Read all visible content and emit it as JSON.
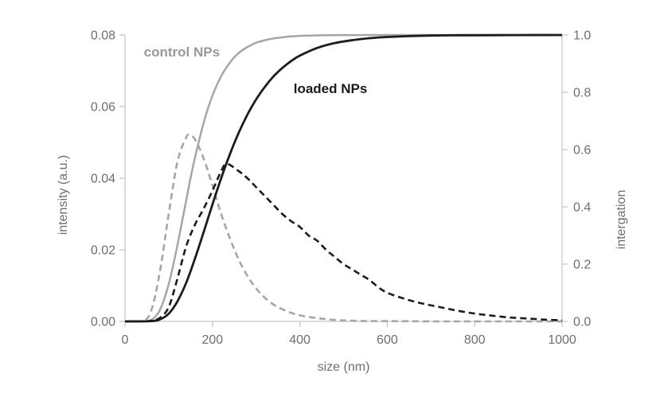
{
  "chart_data": {
    "type": "line",
    "title": "",
    "description": "Dynamic light scattering size distributions (dashed, left axis) and cumulative integration curves (solid, right axis) for control and drug-loaded nanoparticles",
    "x_axis": {
      "title": "size (nm)",
      "range": [
        0,
        1000
      ],
      "ticks": [
        "0",
        "200",
        "400",
        "600",
        "800",
        "1000"
      ]
    },
    "left_axis": {
      "title": "intensity (a.u.)",
      "range": [
        0,
        0.08
      ],
      "ticks": [
        "0.00",
        "0.02",
        "0.04",
        "0.06",
        "0.08"
      ]
    },
    "right_axis": {
      "title": "intergation",
      "range": [
        0,
        1.0
      ],
      "ticks": [
        "0.0",
        "0.2",
        "0.4",
        "0.6",
        "0.8",
        "1.0"
      ]
    },
    "grid": false,
    "legend_position": "none-inline-annotations",
    "colors": {
      "control": "#a6a6a6",
      "loaded": "#1c1c1c",
      "axis_line": "#c8c8c8",
      "tick_text": "#6e6e6e"
    },
    "annotations": [
      {
        "text": "control NPs",
        "color": "#999999",
        "x": 130,
        "value": 0.94,
        "axis": "right"
      },
      {
        "text": "loaded NPs",
        "color": "#1c1c1c",
        "x": 470,
        "value": 0.81,
        "axis": "right"
      }
    ],
    "series": [
      {
        "id": "control_pdf",
        "name": "control NPs size distribution",
        "axis": "left",
        "style": "dashed",
        "color": "#a6a6a6",
        "points": [
          [
            0,
            0
          ],
          [
            40,
            0.0001
          ],
          [
            60,
            0.003
          ],
          [
            80,
            0.014
          ],
          [
            100,
            0.03
          ],
          [
            120,
            0.0446
          ],
          [
            140,
            0.0514
          ],
          [
            148,
            0.052
          ],
          [
            160,
            0.0509
          ],
          [
            180,
            0.0455
          ],
          [
            200,
            0.038
          ],
          [
            220,
            0.03
          ],
          [
            240,
            0.0232
          ],
          [
            260,
            0.0173
          ],
          [
            280,
            0.0127
          ],
          [
            300,
            0.0092
          ],
          [
            320,
            0.0066
          ],
          [
            340,
            0.0047
          ],
          [
            360,
            0.0034
          ],
          [
            380,
            0.0024
          ],
          [
            400,
            0.0017
          ],
          [
            440,
            0.0009
          ],
          [
            480,
            0.0004
          ],
          [
            520,
            0.0002
          ],
          [
            560,
            0.0001
          ],
          [
            600,
            0.0001
          ],
          [
            700,
            0
          ],
          [
            800,
            0
          ],
          [
            900,
            0
          ],
          [
            1000,
            0
          ]
        ]
      },
      {
        "id": "control_cdf",
        "name": "control NPs integration",
        "axis": "right",
        "style": "solid",
        "color": "#a6a6a6",
        "points": [
          [
            0,
            0
          ],
          [
            40,
            0
          ],
          [
            60,
            0.005
          ],
          [
            80,
            0.04
          ],
          [
            100,
            0.13
          ],
          [
            120,
            0.267
          ],
          [
            140,
            0.423
          ],
          [
            150,
            0.5
          ],
          [
            160,
            0.571
          ],
          [
            180,
            0.694
          ],
          [
            200,
            0.788
          ],
          [
            220,
            0.856
          ],
          [
            240,
            0.904
          ],
          [
            260,
            0.937
          ],
          [
            280,
            0.958
          ],
          [
            300,
            0.973
          ],
          [
            320,
            0.982
          ],
          [
            340,
            0.988
          ],
          [
            360,
            0.992
          ],
          [
            380,
            0.995
          ],
          [
            400,
            0.997
          ],
          [
            450,
            0.999
          ],
          [
            500,
            0.9996
          ],
          [
            600,
            1
          ],
          [
            700,
            1
          ],
          [
            800,
            1
          ],
          [
            900,
            1
          ],
          [
            1000,
            1
          ]
        ]
      },
      {
        "id": "loaded_pdf",
        "name": "loaded NPs size distribution",
        "axis": "left",
        "style": "dashed",
        "color": "#1c1c1c",
        "points": [
          [
            0,
            0
          ],
          [
            40,
            0
          ],
          [
            60,
            0.0002
          ],
          [
            80,
            0.001
          ],
          [
            100,
            0.004
          ],
          [
            120,
            0.012
          ],
          [
            140,
            0.021
          ],
          [
            160,
            0.027
          ],
          [
            180,
            0.0315
          ],
          [
            200,
            0.0365
          ],
          [
            220,
            0.042
          ],
          [
            233,
            0.044
          ],
          [
            260,
            0.042
          ],
          [
            280,
            0.04
          ],
          [
            300,
            0.0375
          ],
          [
            320,
            0.035
          ],
          [
            340,
            0.0325
          ],
          [
            360,
            0.03
          ],
          [
            380,
            0.028
          ],
          [
            400,
            0.0264
          ],
          [
            420,
            0.024
          ],
          [
            440,
            0.0225
          ],
          [
            460,
            0.02
          ],
          [
            480,
            0.018
          ],
          [
            500,
            0.016
          ],
          [
            520,
            0.0145
          ],
          [
            540,
            0.013
          ],
          [
            560,
            0.0115
          ],
          [
            580,
            0.0095
          ],
          [
            600,
            0.008
          ],
          [
            640,
            0.0063
          ],
          [
            680,
            0.005
          ],
          [
            720,
            0.004
          ],
          [
            760,
            0.003
          ],
          [
            800,
            0.0022
          ],
          [
            840,
            0.0016
          ],
          [
            880,
            0.0011
          ],
          [
            920,
            0.0008
          ],
          [
            960,
            0.0005
          ],
          [
            1000,
            0.0003
          ]
        ]
      },
      {
        "id": "loaded_cdf",
        "name": "loaded NPs integration",
        "axis": "right",
        "style": "solid",
        "color": "#1c1c1c",
        "points": [
          [
            0,
            0
          ],
          [
            60,
            0.001
          ],
          [
            80,
            0.007
          ],
          [
            100,
            0.027
          ],
          [
            120,
            0.07
          ],
          [
            140,
            0.135
          ],
          [
            160,
            0.219
          ],
          [
            180,
            0.312
          ],
          [
            200,
            0.408
          ],
          [
            220,
            0.5
          ],
          [
            240,
            0.584
          ],
          [
            260,
            0.658
          ],
          [
            280,
            0.722
          ],
          [
            300,
            0.775
          ],
          [
            320,
            0.819
          ],
          [
            340,
            0.856
          ],
          [
            360,
            0.885
          ],
          [
            380,
            0.909
          ],
          [
            400,
            0.928
          ],
          [
            440,
            0.955
          ],
          [
            480,
            0.972
          ],
          [
            520,
            0.982
          ],
          [
            560,
            0.989
          ],
          [
            600,
            0.993
          ],
          [
            650,
            0.996
          ],
          [
            700,
            0.998
          ],
          [
            750,
            0.999
          ],
          [
            800,
            0.9993
          ],
          [
            900,
            0.9997
          ],
          [
            1000,
            1
          ]
        ]
      }
    ]
  }
}
